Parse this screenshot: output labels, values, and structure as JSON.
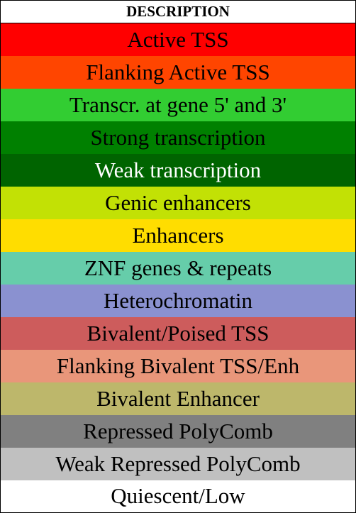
{
  "header": {
    "title": "DESCRIPTION"
  },
  "rows": [
    {
      "label": "Active TSS",
      "color": "#ff0000",
      "text_color": "#000000"
    },
    {
      "label": "Flanking Active TSS",
      "color": "#ff4500",
      "text_color": "#000000"
    },
    {
      "label": "Transcr. at gene 5' and 3'",
      "color": "#32cd32",
      "text_color": "#000000"
    },
    {
      "label": "Strong transcription",
      "color": "#008000",
      "text_color": "#000000"
    },
    {
      "label": "Weak transcription",
      "color": "#006400",
      "text_color": "#ffffff"
    },
    {
      "label": "Genic enhancers",
      "color": "#c2e105",
      "text_color": "#000000"
    },
    {
      "label": "Enhancers",
      "color": "#ffdd00",
      "text_color": "#000000"
    },
    {
      "label": "ZNF genes & repeats",
      "color": "#66cdaa",
      "text_color": "#000000"
    },
    {
      "label": "Heterochromatin",
      "color": "#8a91d0",
      "text_color": "#000000"
    },
    {
      "label": "Bivalent/Poised TSS",
      "color": "#cd5c5c",
      "text_color": "#000000"
    },
    {
      "label": "Flanking Bivalent TSS/Enh",
      "color": "#e9967a",
      "text_color": "#000000"
    },
    {
      "label": "Bivalent Enhancer",
      "color": "#bdb76b",
      "text_color": "#000000"
    },
    {
      "label": "Repressed PolyComb",
      "color": "#808080",
      "text_color": "#000000"
    },
    {
      "label": "Weak Repressed PolyComb",
      "color": "#c0c0c0",
      "text_color": "#000000"
    },
    {
      "label": "Quiescent/Low",
      "color": "#ffffff",
      "text_color": "#000000"
    }
  ]
}
